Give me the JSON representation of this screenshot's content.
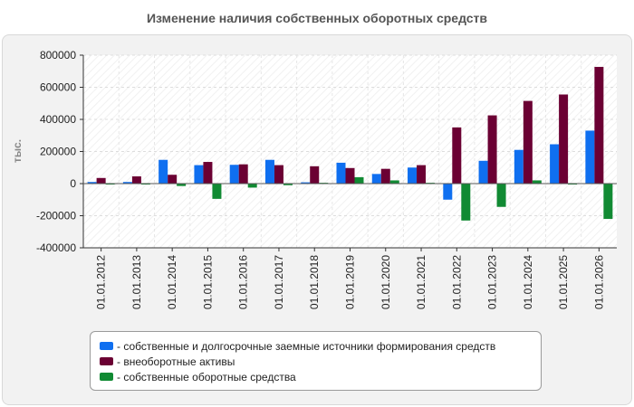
{
  "chart_data": {
    "type": "bar",
    "title": "Изменение наличия собственных оборотных средств",
    "ylabel": "тыс.",
    "xlabel": "",
    "ylim": [
      -400000,
      800000
    ],
    "yticks": [
      -400000,
      -200000,
      0,
      200000,
      400000,
      600000,
      800000
    ],
    "ytick_labels": [
      "-400000",
      "-200000",
      "0",
      "200000",
      "400000",
      "600000",
      "800000"
    ],
    "grid": true,
    "legend_position": "bottom",
    "categories": [
      "01.01.2012",
      "01.01.2013",
      "01.01.2014",
      "01.01.2015",
      "01.01.2016",
      "01.01.2017",
      "01.01.2018",
      "01.01.2019",
      "01.01.2020",
      "01.01.2021",
      "01.01.2022",
      "01.01.2023",
      "01.01.2024",
      "01.01.2025",
      "01.01.2026"
    ],
    "series": [
      {
        "name": "- собственные и долгосрочные заемные источники формирования средств",
        "color": "#0f6ff0",
        "values": [
          10000,
          10000,
          148000,
          115000,
          117000,
          148000,
          8000,
          130000,
          60000,
          100000,
          -100000,
          142000,
          210000,
          245000,
          330000
        ]
      },
      {
        "name": "- внеоборотные активы",
        "color": "#6b0033",
        "values": [
          35000,
          45000,
          55000,
          135000,
          120000,
          115000,
          108000,
          97000,
          92000,
          115000,
          350000,
          425000,
          515000,
          555000,
          727000
        ]
      },
      {
        "name": "- собственные оборотные средства",
        "color": "#118a33",
        "values": [
          -5000,
          -5000,
          -15000,
          -95000,
          -25000,
          -10000,
          5000,
          40000,
          20000,
          5000,
          -230000,
          -145000,
          20000,
          -5000,
          -220000
        ]
      }
    ]
  }
}
